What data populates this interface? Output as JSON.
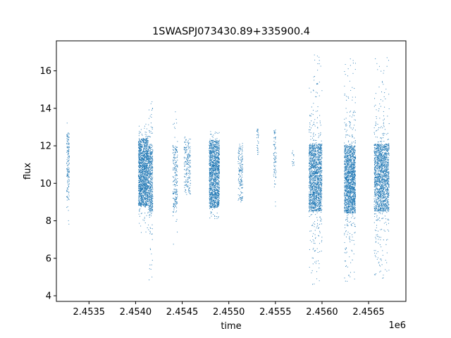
{
  "chart_data": {
    "type": "scatter",
    "title": "1SWASPJ073430.89+335900.4",
    "xlabel": "time",
    "ylabel": "flux",
    "x_offset_label": "1e6",
    "xlim": [
      2453150,
      2456900
    ],
    "ylim": [
      3.7,
      17.6
    ],
    "xticks": [
      2453500,
      2454000,
      2454500,
      2455000,
      2455500,
      2456000,
      2456500
    ],
    "xtick_labels": [
      "2.4535",
      "2.4540",
      "2.4545",
      "2.4550",
      "2.4555",
      "2.4560",
      "2.4565"
    ],
    "yticks": [
      4,
      6,
      8,
      10,
      12,
      14,
      16
    ],
    "ytick_labels": [
      "4",
      "6",
      "8",
      "10",
      "12",
      "14",
      "16"
    ],
    "grid": false,
    "marker_color": "#1f77b4",
    "series": [
      {
        "clusters": [
          {
            "x_start": 2453260,
            "x_end": 2453290,
            "y_median": 10.9,
            "y_low": 7.8,
            "y_high": 13.4,
            "points": 160
          },
          {
            "x_start": 2454030,
            "x_end": 2454140,
            "y_median": 10.6,
            "y_low": 7.3,
            "y_high": 13.2,
            "points": 1600
          },
          {
            "x_start": 2454143,
            "x_end": 2454185,
            "y_median": 10.3,
            "y_low": 4.4,
            "y_high": 14.5,
            "points": 500
          },
          {
            "x_start": 2454400,
            "x_end": 2454450,
            "y_median": 10.2,
            "y_low": 4.5,
            "y_high": 14.2,
            "points": 220
          },
          {
            "x_start": 2454520,
            "x_end": 2454590,
            "y_median": 10.9,
            "y_low": 8.8,
            "y_high": 12.5,
            "points": 200
          },
          {
            "x_start": 2454790,
            "x_end": 2454900,
            "y_median": 10.5,
            "y_low": 8.1,
            "y_high": 12.8,
            "points": 1500
          },
          {
            "x_start": 2455100,
            "x_end": 2455150,
            "y_median": 10.6,
            "y_low": 9.0,
            "y_high": 12.5,
            "points": 160
          },
          {
            "x_start": 2455300,
            "x_end": 2455320,
            "y_median": 12.2,
            "y_low": 11.0,
            "y_high": 13.0,
            "points": 30
          },
          {
            "x_start": 2455480,
            "x_end": 2455510,
            "y_median": 11.4,
            "y_low": 8.6,
            "y_high": 13.1,
            "points": 80
          },
          {
            "x_start": 2455680,
            "x_end": 2455700,
            "y_median": 11.2,
            "y_low": 10.4,
            "y_high": 11.8,
            "points": 15
          },
          {
            "x_start": 2455860,
            "x_end": 2456000,
            "y_median": 10.3,
            "y_low": 4.6,
            "y_high": 17.1,
            "points": 1700
          },
          {
            "x_start": 2456240,
            "x_end": 2456360,
            "y_median": 10.2,
            "y_low": 4.7,
            "y_high": 16.9,
            "points": 1700
          },
          {
            "x_start": 2456560,
            "x_end": 2456720,
            "y_median": 10.3,
            "y_low": 4.9,
            "y_high": 16.8,
            "points": 1800
          }
        ]
      }
    ]
  }
}
